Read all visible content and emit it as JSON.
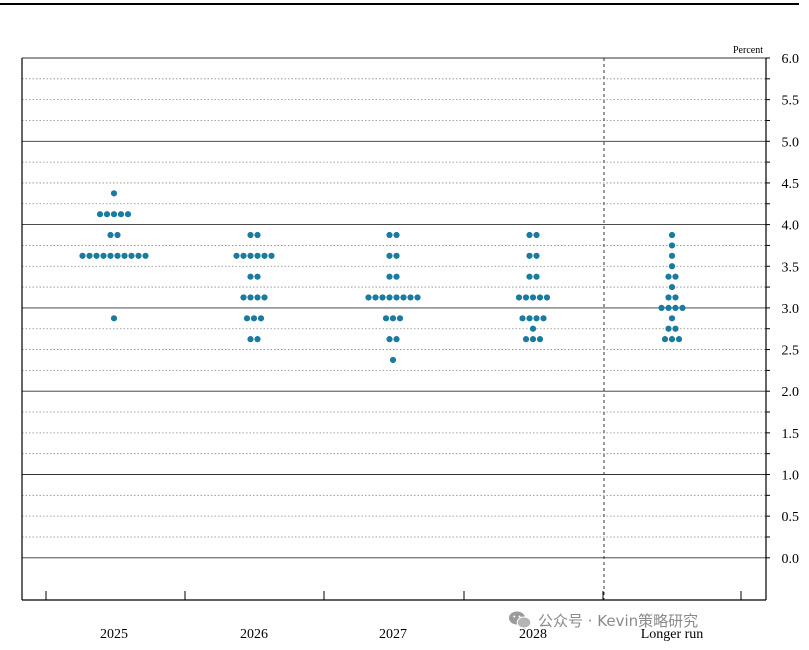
{
  "colors": {
    "dot": "#1a7aa0",
    "axis": "#000000",
    "grid": "#888888",
    "watermark": "#8a8a8a"
  },
  "watermark": {
    "text": "公众号 · Kevin策略研究",
    "icon": "wechat-logo"
  },
  "chart_data": {
    "type": "scatter",
    "subtype": "dot-plot",
    "unit_label": "Percent",
    "y_range": [
      -0.2,
      6.0
    ],
    "y_ticks": [
      6.0,
      5.5,
      5.0,
      4.5,
      4.0,
      3.5,
      3.0,
      2.5,
      2.0,
      1.5,
      1.0,
      0.5,
      0.0
    ],
    "y_tick_labels": [
      "6.0",
      "5.5",
      "5.0",
      "4.5",
      "4.0",
      "3.5",
      "3.0",
      "2.5",
      "2.0",
      "1.5",
      "1.0",
      "0.5",
      "0.0"
    ],
    "grid": "dotted minor lines every 0.25, solid at whole numbers",
    "divider_before": "Longer run",
    "categories": [
      "2025",
      "2026",
      "2027",
      "2028",
      "Longer run"
    ],
    "series": [
      {
        "category": "2025",
        "points": [
          {
            "y": 4.375,
            "count": 1
          },
          {
            "y": 4.125,
            "count": 5
          },
          {
            "y": 3.875,
            "count": 2
          },
          {
            "y": 3.625,
            "count": 10
          },
          {
            "y": 2.875,
            "count": 1
          }
        ]
      },
      {
        "category": "2026",
        "points": [
          {
            "y": 3.875,
            "count": 2
          },
          {
            "y": 3.625,
            "count": 6
          },
          {
            "y": 3.375,
            "count": 2
          },
          {
            "y": 3.125,
            "count": 4
          },
          {
            "y": 2.875,
            "count": 3
          },
          {
            "y": 2.625,
            "count": 2
          }
        ]
      },
      {
        "category": "2027",
        "points": [
          {
            "y": 3.875,
            "count": 2
          },
          {
            "y": 3.625,
            "count": 2
          },
          {
            "y": 3.375,
            "count": 2
          },
          {
            "y": 3.125,
            "count": 8
          },
          {
            "y": 2.875,
            "count": 3
          },
          {
            "y": 2.625,
            "count": 2
          },
          {
            "y": 2.375,
            "count": 1
          }
        ]
      },
      {
        "category": "2028",
        "points": [
          {
            "y": 3.875,
            "count": 2
          },
          {
            "y": 3.625,
            "count": 2
          },
          {
            "y": 3.375,
            "count": 2
          },
          {
            "y": 3.125,
            "count": 5
          },
          {
            "y": 2.875,
            "count": 4
          },
          {
            "y": 2.75,
            "count": 1
          },
          {
            "y": 2.625,
            "count": 3
          }
        ]
      },
      {
        "category": "Longer run",
        "points": [
          {
            "y": 3.875,
            "count": 1
          },
          {
            "y": 3.75,
            "count": 1
          },
          {
            "y": 3.625,
            "count": 1
          },
          {
            "y": 3.5,
            "count": 1
          },
          {
            "y": 3.375,
            "count": 2
          },
          {
            "y": 3.25,
            "count": 1
          },
          {
            "y": 3.125,
            "count": 2
          },
          {
            "y": 3.0,
            "count": 4
          },
          {
            "y": 2.875,
            "count": 1
          },
          {
            "y": 2.75,
            "count": 2
          },
          {
            "y": 2.625,
            "count": 3
          }
        ]
      }
    ]
  }
}
